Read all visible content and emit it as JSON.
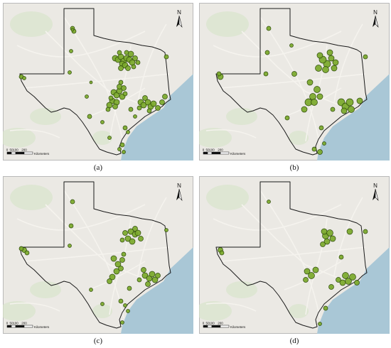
{
  "panels": [
    {
      "caption": "(a)",
      "north_label": "N",
      "scale": {
        "ticks": [
          "0",
          "50",
          "100",
          "200"
        ],
        "unit": "Kilometers"
      },
      "marker_color": "#7aa82a"
    },
    {
      "caption": "(b)",
      "north_label": "N",
      "scale": {
        "ticks": [
          "0",
          "50",
          "100",
          "200"
        ],
        "unit": "Kilometers"
      },
      "marker_color": "#7aa82a"
    },
    {
      "caption": "(c)",
      "north_label": "N",
      "scale": {
        "ticks": [
          "0",
          "50",
          "100",
          "200"
        ],
        "unit": "Kilometers"
      },
      "marker_color": "#7aa82a"
    },
    {
      "caption": "(d)",
      "north_label": "N",
      "scale": {
        "ticks": [
          "0",
          "50",
          "100",
          "200"
        ],
        "unit": "Kilometers"
      },
      "marker_color": "#7aa82a"
    }
  ],
  "colors": {
    "land": "#ebe9e4",
    "water": "#a9c7d6",
    "state_outline": "#1a1a1a",
    "roads": "#f5f3ee",
    "marker_stroke": "#2e4a0c"
  }
}
